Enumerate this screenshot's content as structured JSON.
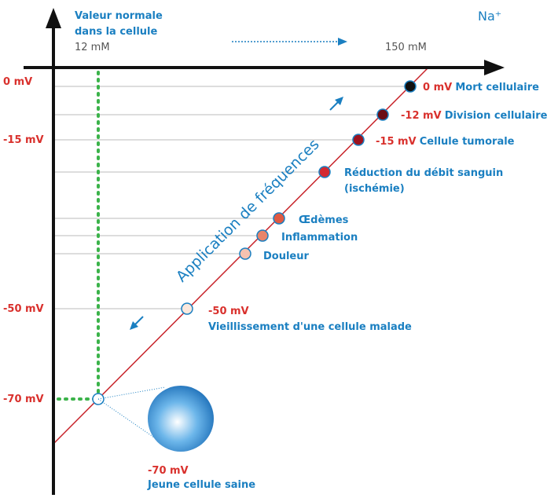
{
  "header": {
    "normal_line1": "Valeur normale",
    "normal_line2": "dans la cellule",
    "inside": "12 mM",
    "outside": "150 mM",
    "ion": "Na⁺"
  },
  "axis_labels": [
    "0 mV",
    "-15 mV",
    "-50 mV",
    "-70 mV"
  ],
  "arrow_label": "Application de fréquences",
  "states": [
    {
      "potential": "0 mV",
      "name": "Mort cellulaire"
    },
    {
      "potential": "-12 mV",
      "name": "Division cellulaire"
    },
    {
      "potential": "-15 mV",
      "name": "Cellule tumorale"
    },
    {
      "name": "Réduction du débit sanguin",
      "note": "(ischémie)"
    },
    {
      "name": "Œdèmes"
    },
    {
      "name": "Inflammation"
    },
    {
      "name": "Douleur"
    },
    {
      "potential": "-50 mV",
      "name": "Vieillissement d'une cellule malade"
    },
    {
      "potential": "-70 mV",
      "name": "Jeune cellule saine"
    }
  ]
}
